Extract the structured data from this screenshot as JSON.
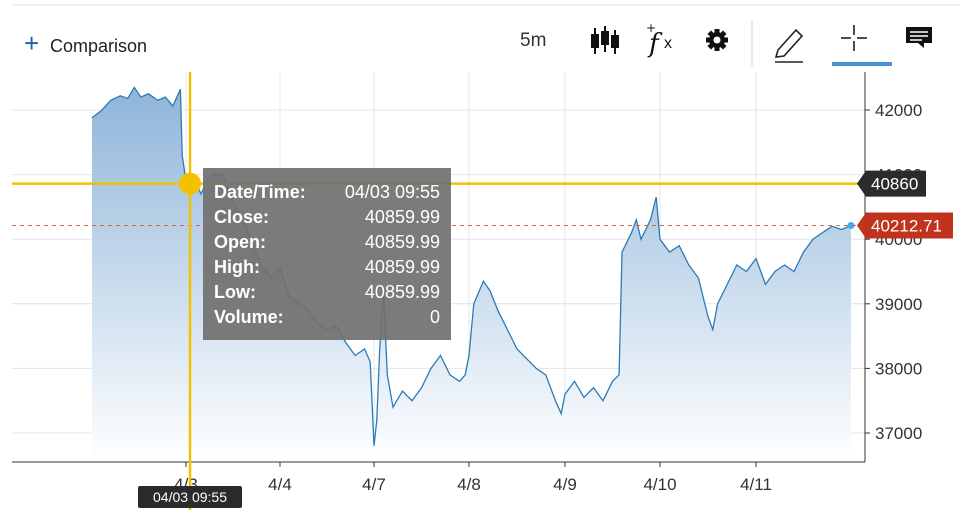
{
  "toolbar": {
    "comparison_label": "Comparison",
    "interval_label": "5m",
    "candles_icon": "candlestick-icon",
    "fx_icon": "fx-icon",
    "settings_icon": "gear-icon",
    "draw_icon": "pencil-icon",
    "crosshair_icon": "crosshair-icon",
    "annotation_icon": "comment-icon",
    "active_tool": "crosshair"
  },
  "colors": {
    "line": "#2b7bb9",
    "fill_top": "#8fb5d9",
    "fill_bottom": "#ffffff",
    "crosshair": "#f2c200",
    "last_price_badge": "#c0341d",
    "crosshair_badge": "#2b2b2b",
    "tooltip_bg": "#707070",
    "active_underline": "#4a90d9"
  },
  "crosshair": {
    "date_label": "04/03 09:55",
    "price_label": "40860"
  },
  "last_price": {
    "label": "40212.71",
    "value": 40212.71
  },
  "tooltip": {
    "rows": [
      {
        "label": "Date/Time:",
        "value": "04/03 09:55"
      },
      {
        "label": "Close:",
        "value": "40859.99"
      },
      {
        "label": "Open:",
        "value": "40859.99"
      },
      {
        "label": "High:",
        "value": "40859.99"
      },
      {
        "label": "Low:",
        "value": "40859.99"
      },
      {
        "label": "Volume:",
        "value": "0"
      }
    ]
  },
  "chart_data": {
    "type": "area",
    "title": "",
    "xlabel": "",
    "ylabel": "",
    "ylim": [
      36550,
      42600
    ],
    "yticks": [
      37000,
      38000,
      39000,
      40000,
      41000,
      42000
    ],
    "ytick_labels": [
      "37000",
      "38000",
      "39000",
      "40000",
      "41000",
      "42000"
    ],
    "xticks": [
      "4/3",
      "4/4",
      "4/7",
      "4/8",
      "4/9",
      "4/10",
      "4/11"
    ],
    "grid": true,
    "x_start": "4/2",
    "x_end": "4/11",
    "series": [
      {
        "values": [
          {
            "t": 0.0,
            "v": 41880
          },
          {
            "t": 0.1,
            "v": 41990
          },
          {
            "t": 0.2,
            "v": 42150
          },
          {
            "t": 0.3,
            "v": 42220
          },
          {
            "t": 0.38,
            "v": 42180
          },
          {
            "t": 0.45,
            "v": 42350
          },
          {
            "t": 0.52,
            "v": 42200
          },
          {
            "t": 0.6,
            "v": 42250
          },
          {
            "t": 0.7,
            "v": 42150
          },
          {
            "t": 0.78,
            "v": 42200
          },
          {
            "t": 0.86,
            "v": 42060
          },
          {
            "t": 0.94,
            "v": 42320
          },
          {
            "t": 0.96,
            "v": 41300
          },
          {
            "t": 0.98,
            "v": 41100
          },
          {
            "t": 1.0,
            "v": 40860
          },
          {
            "t": 1.08,
            "v": 40950
          },
          {
            "t": 1.16,
            "v": 40700
          },
          {
            "t": 1.24,
            "v": 40950
          },
          {
            "t": 1.32,
            "v": 41020
          },
          {
            "t": 1.4,
            "v": 40980
          },
          {
            "t": 1.5,
            "v": 40600
          },
          {
            "t": 1.6,
            "v": 40300
          },
          {
            "t": 1.7,
            "v": 39950
          },
          {
            "t": 1.8,
            "v": 39600
          },
          {
            "t": 1.9,
            "v": 39400
          },
          {
            "t": 2.0,
            "v": 39550
          },
          {
            "t": 2.1,
            "v": 39100
          },
          {
            "t": 2.2,
            "v": 39000
          },
          {
            "t": 2.3,
            "v": 38900
          },
          {
            "t": 2.4,
            "v": 38700
          },
          {
            "t": 2.5,
            "v": 38600
          },
          {
            "t": 2.6,
            "v": 38650
          },
          {
            "t": 2.7,
            "v": 38400
          },
          {
            "t": 2.8,
            "v": 38200
          },
          {
            "t": 2.9,
            "v": 38300
          },
          {
            "t": 2.96,
            "v": 38100
          },
          {
            "t": 3.0,
            "v": 36800
          },
          {
            "t": 3.03,
            "v": 37200
          },
          {
            "t": 3.06,
            "v": 38300
          },
          {
            "t": 3.1,
            "v": 39200
          },
          {
            "t": 3.14,
            "v": 37900
          },
          {
            "t": 3.2,
            "v": 37400
          },
          {
            "t": 3.3,
            "v": 37650
          },
          {
            "t": 3.4,
            "v": 37500
          },
          {
            "t": 3.5,
            "v": 37700
          },
          {
            "t": 3.6,
            "v": 38000
          },
          {
            "t": 3.7,
            "v": 38200
          },
          {
            "t": 3.8,
            "v": 37900
          },
          {
            "t": 3.9,
            "v": 37800
          },
          {
            "t": 3.96,
            "v": 37900
          },
          {
            "t": 4.0,
            "v": 38200
          },
          {
            "t": 4.05,
            "v": 39000
          },
          {
            "t": 4.15,
            "v": 39350
          },
          {
            "t": 4.22,
            "v": 39200
          },
          {
            "t": 4.3,
            "v": 38900
          },
          {
            "t": 4.4,
            "v": 38600
          },
          {
            "t": 4.5,
            "v": 38300
          },
          {
            "t": 4.6,
            "v": 38150
          },
          {
            "t": 4.7,
            "v": 38000
          },
          {
            "t": 4.8,
            "v": 37900
          },
          {
            "t": 4.9,
            "v": 37500
          },
          {
            "t": 4.96,
            "v": 37300
          },
          {
            "t": 5.0,
            "v": 37600
          },
          {
            "t": 5.1,
            "v": 37800
          },
          {
            "t": 5.2,
            "v": 37550
          },
          {
            "t": 5.3,
            "v": 37700
          },
          {
            "t": 5.4,
            "v": 37500
          },
          {
            "t": 5.5,
            "v": 37800
          },
          {
            "t": 5.57,
            "v": 37900
          },
          {
            "t": 5.6,
            "v": 39800
          },
          {
            "t": 5.7,
            "v": 40100
          },
          {
            "t": 5.75,
            "v": 40300
          },
          {
            "t": 5.8,
            "v": 40000
          },
          {
            "t": 5.9,
            "v": 40300
          },
          {
            "t": 5.96,
            "v": 40650
          },
          {
            "t": 6.0,
            "v": 40000
          },
          {
            "t": 6.1,
            "v": 39800
          },
          {
            "t": 6.2,
            "v": 39900
          },
          {
            "t": 6.3,
            "v": 39600
          },
          {
            "t": 6.4,
            "v": 39400
          },
          {
            "t": 6.5,
            "v": 38800
          },
          {
            "t": 6.55,
            "v": 38600
          },
          {
            "t": 6.6,
            "v": 39000
          },
          {
            "t": 6.7,
            "v": 39300
          },
          {
            "t": 6.8,
            "v": 39600
          },
          {
            "t": 6.9,
            "v": 39500
          },
          {
            "t": 7.0,
            "v": 39700
          },
          {
            "t": 7.1,
            "v": 39300
          },
          {
            "t": 7.2,
            "v": 39500
          },
          {
            "t": 7.3,
            "v": 39600
          },
          {
            "t": 7.4,
            "v": 39500
          },
          {
            "t": 7.5,
            "v": 39800
          },
          {
            "t": 7.6,
            "v": 40000
          },
          {
            "t": 7.7,
            "v": 40100
          },
          {
            "t": 7.8,
            "v": 40200
          },
          {
            "t": 7.9,
            "v": 40150
          },
          {
            "t": 8.0,
            "v": 40212.71
          }
        ]
      }
    ]
  }
}
